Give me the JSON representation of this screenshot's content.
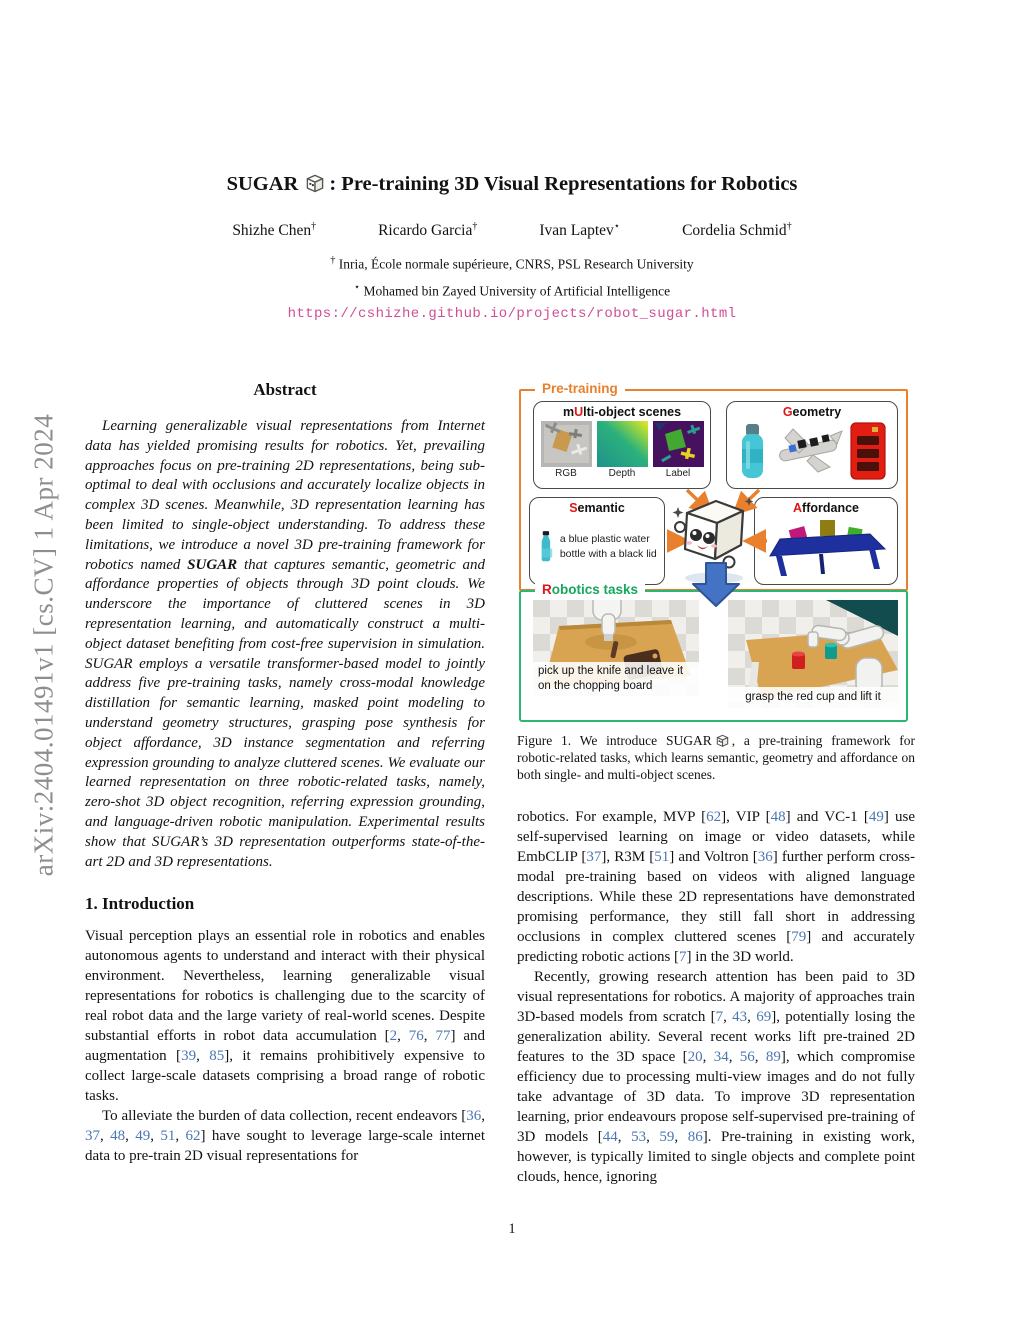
{
  "arxiv_banner": "arXiv:2404.01491v1  [cs.CV]  1 Apr 2024",
  "header": {
    "title_pre": "SUGAR",
    "title_post": ": Pre-training 3D Visual Representations for Robotics",
    "authors": [
      {
        "name": "Shizhe Chen",
        "mark": "†"
      },
      {
        "name": "Ricardo Garcia",
        "mark": "†"
      },
      {
        "name": "Ivan Laptev",
        "mark": "⋆"
      },
      {
        "name": "Cordelia Schmid",
        "mark": "†"
      }
    ],
    "affiliations": [
      {
        "mark": "†",
        "text": " Inria, École normale supérieure, CNRS, PSL Research University"
      },
      {
        "mark": "⋆",
        "text": " Mohamed bin Zayed University of Artificial Intelligence"
      }
    ],
    "url": "https://cshizhe.github.io/projects/robot_sugar.html"
  },
  "abstract": {
    "heading": "Abstract",
    "text": "Learning generalizable visual representations from Internet data has yielded promising results for robotics. Yet, prevailing approaches focus on pre-training 2D representations, being sub-optimal to deal with occlusions and accurately localize objects in complex 3D scenes. Meanwhile, 3D representation learning has been limited to single-object understanding. To address these limitations, we introduce a novel 3D pre-training framework for robotics named **SUGAR** that captures semantic, geometric and affordance properties of objects through 3D point clouds. We underscore the importance of cluttered scenes in 3D representation learning, and automatically construct a multi-object dataset benefiting from cost-free supervision in simulation. SUGAR employs a versatile transformer-based model to jointly address five pre-training tasks, namely cross-modal knowledge distillation for semantic learning, masked point modeling to understand geometry structures, grasping pose synthesis for object affordance, 3D instance segmentation and referring expression grounding to analyze cluttered scenes. We evaluate our learned representation on three robotic-related tasks, namely, zero-shot 3D object recognition, referring expression grounding, and language-driven robotic manipulation. Experimental results show that SUGAR’s 3D representation outperforms state-of-the-art 2D and 3D representations."
  },
  "intro": {
    "heading": "1. Introduction",
    "paragraphs": [
      "Visual perception plays an essential role in robotics and enables autonomous agents to understand and interact with their physical environment. Nevertheless, learning generalizable visual representations for robotics is challenging due to the scarcity of real robot data and the large variety of real-world scenes. Despite substantial efforts in robot data accumulation [2, 76, 77] and augmentation [39, 85], it remains prohibitively expensive to collect large-scale datasets comprising a broad range of robotic tasks.",
      "To alleviate the burden of data collection, recent endeavors [36, 37, 48, 49, 51, 62] have sought to leverage large-scale internet data to pre-train 2D visual representations for"
    ]
  },
  "right_column": {
    "paragraphs": [
      "robotics. For example, MVP [62], VIP [48] and VC-1 [49] use self-supervised learning on image or video datasets, while EmbCLIP [37], R3M [51] and Voltron [36] further perform cross-modal pre-training based on videos with aligned language descriptions. While these 2D representations have demonstrated promising performance, they still fall short in addressing occlusions in complex cluttered scenes [79] and accurately predicting robotic actions [7] in the 3D world.",
      "Recently, growing research attention has been paid to 3D visual representations for robotics. A majority of approaches train 3D-based models from scratch [7, 43, 69], potentially losing the generalization ability. Several recent works lift pre-trained 2D features to the 3D space [20, 34, 56, 89], which compromise efficiency due to processing multi-view images and do not fully take advantage of 3D data. To improve 3D representation learning, prior endeavours propose self-supervised pre-training of 3D models [44, 53, 59, 86]. Pre-training in existing work, however, is typically limited to single objects and complete point clouds, hence, ignoring"
    ]
  },
  "figure": {
    "pretraining_label": "Pre-training",
    "multi": {
      "t1": "m",
      "t2": "U",
      "t3": "lti-object scenes",
      "thumbs": [
        "RGB",
        "Depth",
        "Label"
      ]
    },
    "geometry": {
      "t2": "G",
      "t3": "eometry"
    },
    "semantic": {
      "t2": "S",
      "t3": "emantic",
      "desc": "a blue plastic water bottle with a black lid"
    },
    "affordance": {
      "t2": "A",
      "t3": "ffordance"
    },
    "robotics": {
      "t2": "R",
      "t3": "obotics tasks"
    },
    "tasks": [
      {
        "caption": "pick up the knife and leave it on the chopping board"
      },
      {
        "caption": "grasp the red cup and lift it"
      }
    ]
  },
  "caption": {
    "pre": "Figure 1. We introduce SUGAR",
    "post": ", a pre-training framework for robotic-related tasks, which learns semantic, geometry and affordance on both single- and multi-object scenes."
  },
  "page_number": "1",
  "colors": {
    "accent_orange": "#e8802e",
    "accent_green": "#2cb573",
    "label_green": "#16a75c",
    "letter_red": "#e01616",
    "cite_blue": "#4b77b0",
    "url_pink": "#cf4e94",
    "down_arrow_blue": "#4472c4"
  }
}
